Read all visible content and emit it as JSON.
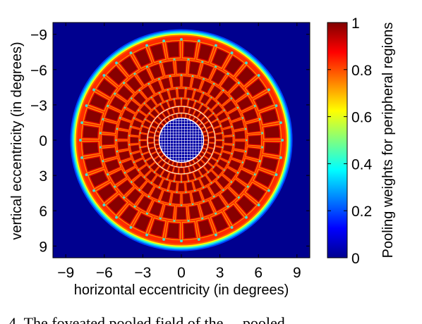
{
  "chart_data": {
    "type": "heatmap",
    "title": "",
    "xlabel": "horizontal eccentricity (in degrees)",
    "ylabel": "vertical eccentricity (in degrees)",
    "colorbar_label": "Pooling weights for peripheral regions",
    "xlim": [
      -10,
      10
    ],
    "ylim": [
      -10,
      10
    ],
    "y_axis_reversed": true,
    "x_ticks": [
      -9,
      -6,
      -3,
      0,
      3,
      6,
      9
    ],
    "x_tick_labels": [
      "−9",
      "−6",
      "−3",
      "0",
      "3",
      "6",
      "9"
    ],
    "y_ticks": [
      -9,
      -6,
      -3,
      0,
      3,
      6,
      9
    ],
    "y_tick_labels": [
      "−9",
      "−6",
      "−3",
      "0",
      "3",
      "6",
      "9"
    ],
    "colorbar_ticks": [
      0,
      0.2,
      0.4,
      0.6,
      0.8,
      1
    ],
    "colorbar_tick_labels": [
      "0",
      "0.2",
      "0.4",
      "0.6",
      "0.8",
      "1"
    ],
    "clim": [
      0,
      1
    ],
    "colormap": "jet",
    "background_value": 0,
    "fovea_radius_deg": 1.8,
    "peripheral_outer_radius_deg": 8.8,
    "ring_radii_deg": [
      2.2,
      2.75,
      3.4,
      4.25,
      5.3,
      6.6,
      8.2
    ],
    "segments_per_ring": 36,
    "peak_weight": 1,
    "fovea_grid_color": "#ffffff",
    "fovea_color": "#0000a8",
    "caption_fragment": "4.   The foveated pooled field of the ... pooled ..."
  }
}
